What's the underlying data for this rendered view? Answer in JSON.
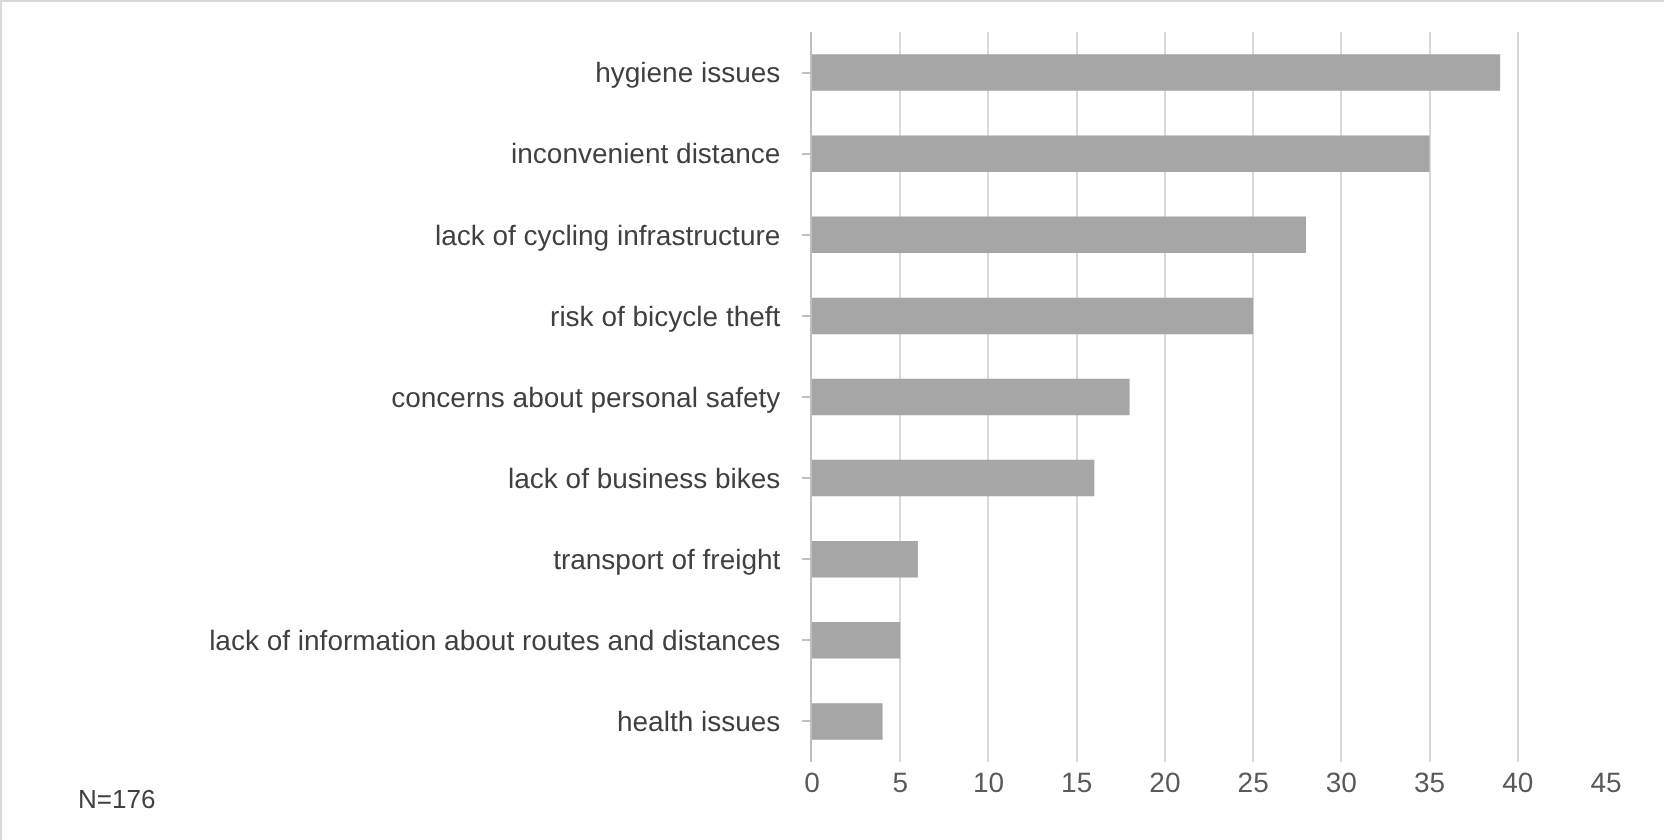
{
  "chart_data": {
    "type": "bar",
    "orientation": "horizontal",
    "categories": [
      "hygiene issues",
      "inconvenient distance",
      "lack of cycling infrastructure",
      "risk of bicycle theft",
      "concerns about personal safety",
      "lack of business bikes",
      "transport of freight",
      "lack of information about routes and distances",
      "health issues"
    ],
    "values": [
      39,
      35,
      28,
      25,
      18,
      16,
      6,
      5,
      4
    ],
    "color": "#a6a6a6",
    "xlim": [
      0,
      45
    ],
    "xticks": [
      0,
      5,
      10,
      15,
      20,
      25,
      30,
      35,
      40,
      45
    ],
    "grid": "x",
    "annotations": [
      "N=176"
    ]
  }
}
